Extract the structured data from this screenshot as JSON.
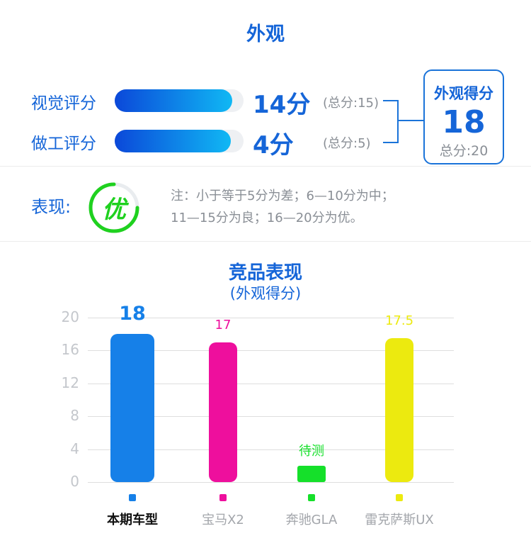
{
  "title": "外观",
  "scores": [
    {
      "label": "视觉评分",
      "score_text": "14分",
      "total_text": "(总分:15)",
      "score": 14,
      "max": 15
    },
    {
      "label": "做工评分",
      "score_text": "4分",
      "total_text": "(总分:5)",
      "score": 4,
      "max": 5
    }
  ],
  "result": {
    "title": "外观得分",
    "score": "18",
    "total": "总分:20"
  },
  "performance": {
    "label": "表现:",
    "grade": "优",
    "note_line1": "注：小于等于5分为差；6—10分为中；",
    "note_line2": "11—15分为良；16—20分为优。",
    "grade_color": "#1fd11f"
  },
  "chart_data": {
    "type": "bar",
    "title": "竞品表现",
    "subtitle": "(外观得分)",
    "categories": [
      "本期车型",
      "宝马X2",
      "奔驰GLA",
      "雷克萨斯UX"
    ],
    "values": [
      18,
      17,
      null,
      17.5
    ],
    "value_labels": [
      "18",
      "17",
      "待测",
      "17.5"
    ],
    "colors": [
      "#1680e8",
      "#ee0f9d",
      "#15e02a",
      "#ecea0f"
    ],
    "yticks": [
      "20",
      "16",
      "12",
      "8",
      "4",
      "0"
    ],
    "ylim": [
      0,
      20
    ],
    "grid": true,
    "legend": "bottom"
  }
}
